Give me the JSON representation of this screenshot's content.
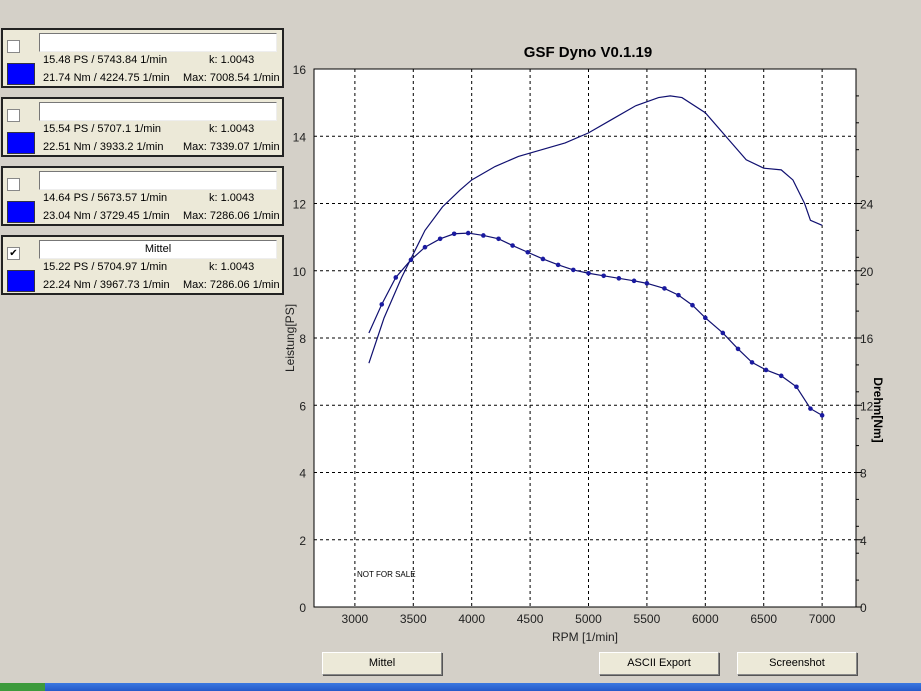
{
  "runs": [
    {
      "checked": false,
      "name": "",
      "power": "15.48 PS / 5743.84 1/min",
      "k": "k: 1.0043",
      "torque": "21.74 Nm / 4224.75 1/min",
      "max": "Max: 7008.54 1/min",
      "color": "#0000ff"
    },
    {
      "checked": false,
      "name": "",
      "power": "15.54 PS / 5707.1 1/min",
      "k": "k: 1.0043",
      "torque": "22.51 Nm / 3933.2 1/min",
      "max": "Max: 7339.07 1/min",
      "color": "#0000ff"
    },
    {
      "checked": false,
      "name": "",
      "power": "14.64 PS / 5673.57 1/min",
      "k": "k: 1.0043",
      "torque": "23.04 Nm / 3729.45 1/min",
      "max": "Max: 7286.06 1/min",
      "color": "#0000ff"
    },
    {
      "checked": true,
      "name": "Mittel",
      "power": "15.22 PS / 5704.97 1/min",
      "k": "k: 1.0043",
      "torque": "22.24 Nm / 3967.73 1/min",
      "max": "Max: 7286.06 1/min",
      "color": "#0000ff"
    }
  ],
  "buttons": {
    "mittel": "Mittel",
    "ascii": "ASCII Export",
    "screenshot": "Screenshot"
  },
  "chart_data": {
    "type": "line",
    "title": "GSF Dyno V0.1.19",
    "xlabel": "RPM [1/min]",
    "ylabel": "Leistung[PS]",
    "y2label": "Drehm[Nm]",
    "watermark": "NOT FOR SALE",
    "xlim": [
      2650,
      7290
    ],
    "ylim": [
      0,
      16
    ],
    "y2lim": [
      0,
      32
    ],
    "xticks": [
      3000,
      3500,
      4000,
      4500,
      5000,
      5500,
      6000,
      6500,
      7000
    ],
    "yticks": [
      0,
      2,
      4,
      6,
      8,
      10,
      12,
      14,
      16
    ],
    "y2ticks": [
      0,
      4,
      8,
      12,
      16,
      20,
      24
    ],
    "grid": true,
    "series": [
      {
        "name": "Leistung",
        "axis": "left",
        "color": "#101070",
        "markers": false,
        "x": [
          3120,
          3250,
          3400,
          3500,
          3600,
          3750,
          3900,
          4000,
          4200,
          4400,
          4600,
          4800,
          5000,
          5200,
          5400,
          5600,
          5700,
          5800,
          6000,
          6200,
          6350,
          6500,
          6650,
          6750,
          6850,
          6900,
          7000
        ],
        "y": [
          7.25,
          8.6,
          9.8,
          10.5,
          11.2,
          11.9,
          12.4,
          12.7,
          13.1,
          13.4,
          13.6,
          13.8,
          14.1,
          14.5,
          14.9,
          15.15,
          15.2,
          15.15,
          14.7,
          13.9,
          13.3,
          13.05,
          13.0,
          12.7,
          12.0,
          11.5,
          11.35
        ]
      },
      {
        "name": "Drehmoment",
        "axis": "right",
        "color": "#101070",
        "markers": true,
        "x": [
          3120,
          3230,
          3350,
          3480,
          3600,
          3730,
          3850,
          3970,
          4100,
          4230,
          4350,
          4480,
          4610,
          4740,
          4870,
          5000,
          5130,
          5260,
          5390,
          5500,
          5650,
          5770,
          5890,
          6000,
          6150,
          6280,
          6400,
          6520,
          6650,
          6780,
          6900,
          7000
        ],
        "y": [
          16.3,
          18.0,
          19.6,
          20.65,
          21.4,
          21.9,
          22.2,
          22.24,
          22.1,
          21.9,
          21.5,
          21.1,
          20.7,
          20.35,
          20.05,
          19.85,
          19.7,
          19.55,
          19.4,
          19.25,
          18.95,
          18.55,
          17.95,
          17.2,
          16.3,
          15.35,
          14.55,
          14.1,
          13.75,
          13.1,
          11.8,
          11.4
        ]
      }
    ]
  }
}
